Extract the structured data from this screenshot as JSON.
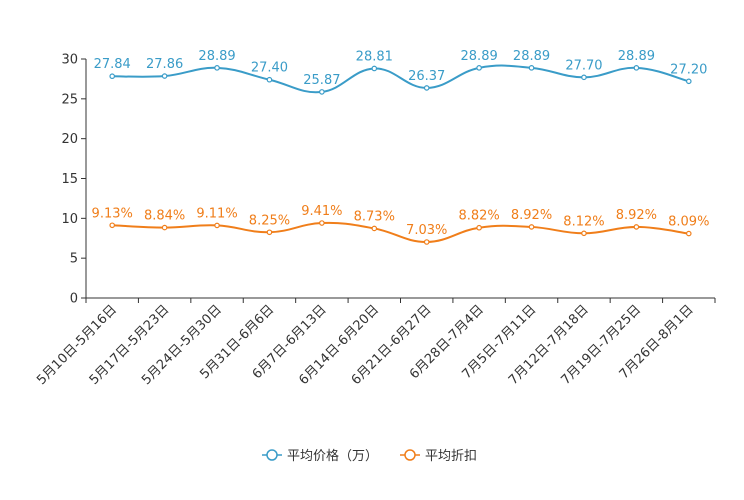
{
  "chart_data": {
    "type": "line",
    "title": "",
    "xlabel": "",
    "ylabel": "",
    "ylim": [
      0,
      30
    ],
    "yticks": [
      0,
      5,
      10,
      15,
      20,
      25,
      30
    ],
    "grid": false,
    "legend_position": "bottom-center",
    "categories": [
      "5月10日-5月16日",
      "5月17日-5月23日",
      "5月24日-5月30日",
      "5月31日-6月6日",
      "6月7日-6月13日",
      "6月14日-6月20日",
      "6月21日-6月27日",
      "6月28日-7月4日",
      "7月5日-7月11日",
      "7月12日-7月18日",
      "7月19日-7月25日",
      "7月26日-8月1日"
    ],
    "series": [
      {
        "name": "平均价格（万）",
        "color": "#3a9cc8",
        "values": [
          27.84,
          27.86,
          28.89,
          27.4,
          25.87,
          28.81,
          26.37,
          28.89,
          28.89,
          27.7,
          28.89,
          27.2
        ],
        "labels": [
          "27.84",
          "27.86",
          "28.89",
          "27.40",
          "25.87",
          "28.81",
          "26.37",
          "28.89",
          "28.89",
          "27.70",
          "28.89",
          "27.20"
        ]
      },
      {
        "name": "平均折扣",
        "color": "#f07e1a",
        "values": [
          9.13,
          8.84,
          9.11,
          8.25,
          9.41,
          8.73,
          7.03,
          8.82,
          8.92,
          8.12,
          8.92,
          8.09
        ],
        "labels": [
          "9.13%",
          "8.84%",
          "9.11%",
          "8.25%",
          "9.41%",
          "8.73%",
          "7.03%",
          "8.82%",
          "8.92%",
          "8.12%",
          "8.92%",
          "8.09%"
        ]
      }
    ]
  }
}
